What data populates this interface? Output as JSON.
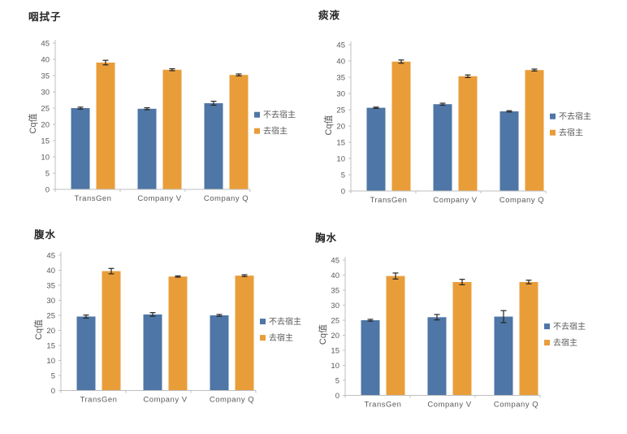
{
  "page": {
    "background": "#ffffff"
  },
  "colors": {
    "series_blue": "#4E76A6",
    "series_orange": "#E99D39",
    "axis_line": "#BFBFBF",
    "tick_text": "#595959",
    "error_bar": "#262626",
    "title_text": "#262626"
  },
  "chart_data": [
    {
      "type": "bar",
      "title": "咽拭子",
      "ylabel": "Cq值",
      "xlabel": "",
      "ylim": [
        0,
        45
      ],
      "ytick_step": 5,
      "grid": false,
      "legend_position": "right",
      "categories": [
        "TransGen",
        "Company V",
        "Company Q"
      ],
      "series": [
        {
          "name": "不去宿主",
          "color": "#4E76A6",
          "values": [
            25.0,
            24.8,
            26.5
          ],
          "errors": [
            0.3,
            0.3,
            0.6
          ]
        },
        {
          "name": "去宿主",
          "color": "#E99D39",
          "values": [
            39.0,
            36.8,
            35.2
          ],
          "errors": [
            0.7,
            0.3,
            0.3
          ]
        }
      ]
    },
    {
      "type": "bar",
      "title": "痰液",
      "ylabel": "Cq值",
      "xlabel": "",
      "ylim": [
        0,
        45
      ],
      "ytick_step": 5,
      "grid": false,
      "legend_position": "right",
      "categories": [
        "TransGen",
        "Company V",
        "Company Q"
      ],
      "series": [
        {
          "name": "不去宿主",
          "color": "#4E76A6",
          "values": [
            25.6,
            26.7,
            24.5
          ],
          "errors": [
            0.2,
            0.3,
            0.2
          ]
        },
        {
          "name": "去宿主",
          "color": "#E99D39",
          "values": [
            39.8,
            35.3,
            37.2
          ],
          "errors": [
            0.5,
            0.4,
            0.3
          ]
        }
      ]
    },
    {
      "type": "bar",
      "title": "腹水",
      "ylabel": "Cq值",
      "xlabel": "",
      "ylim": [
        0,
        45
      ],
      "ytick_step": 5,
      "grid": false,
      "legend_position": "right",
      "categories": [
        "TransGen",
        "Company V",
        "Company Q"
      ],
      "series": [
        {
          "name": "不去宿主",
          "color": "#4E76A6",
          "values": [
            24.6,
            25.3,
            25.0
          ],
          "errors": [
            0.5,
            0.6,
            0.3
          ]
        },
        {
          "name": "去宿主",
          "color": "#E99D39",
          "values": [
            39.7,
            37.9,
            38.2
          ],
          "errors": [
            0.9,
            0.2,
            0.3
          ]
        }
      ]
    },
    {
      "type": "bar",
      "title": "胸水",
      "ylabel": "Cq值",
      "xlabel": "",
      "ylim": [
        0,
        45
      ],
      "ytick_step": 5,
      "grid": false,
      "legend_position": "right",
      "categories": [
        "TransGen",
        "Company V",
        "Company Q"
      ],
      "series": [
        {
          "name": "不去宿主",
          "color": "#4E76A6",
          "values": [
            25.0,
            26.0,
            26.2
          ],
          "errors": [
            0.3,
            0.9,
            2.0
          ]
        },
        {
          "name": "去宿主",
          "color": "#E99D39",
          "values": [
            39.7,
            37.7,
            37.7
          ],
          "errors": [
            1.0,
            0.9,
            0.6
          ]
        }
      ]
    }
  ]
}
